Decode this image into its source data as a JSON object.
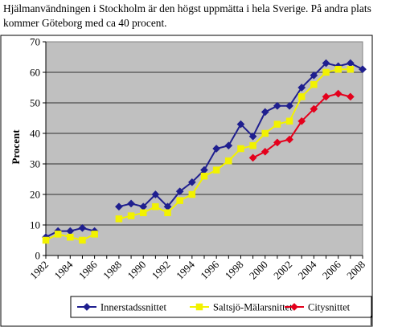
{
  "caption": "Hjälmanvändningen i Stockholm är den högst uppmätta i hela Sverige. På andra plats kommer Göteborg med ca 40 procent.",
  "chart_data": {
    "type": "line",
    "title": "",
    "xlabel": "",
    "ylabel": "Procent",
    "xlim": [
      1982,
      2008
    ],
    "ylim": [
      0,
      70
    ],
    "y_ticks": [
      0,
      10,
      20,
      30,
      40,
      50,
      60,
      70
    ],
    "x_ticks": [
      "1982",
      "1984",
      "1986",
      "1988",
      "1990",
      "1992",
      "1994",
      "1996",
      "1998",
      "2000",
      "2002",
      "2004",
      "2006",
      "2008"
    ],
    "grid": "horizontal",
    "legend_position": "bottom",
    "series": [
      {
        "name": "Innerstadssnittet",
        "color": "#1f1f8f",
        "marker": "diamond",
        "points": [
          [
            1982,
            6
          ],
          [
            1983,
            8
          ],
          [
            1984,
            8
          ],
          [
            1985,
            9
          ],
          [
            1986,
            8
          ],
          [
            null,
            null
          ],
          [
            1988,
            16
          ],
          [
            1989,
            17
          ],
          [
            1990,
            16
          ],
          [
            1991,
            20
          ],
          [
            1992,
            16
          ],
          [
            1993,
            21
          ],
          [
            1994,
            24
          ],
          [
            1995,
            28
          ],
          [
            1996,
            35
          ],
          [
            1997,
            36
          ],
          [
            1998,
            43
          ],
          [
            1999,
            39
          ],
          [
            2000,
            47
          ],
          [
            2001,
            49
          ],
          [
            2002,
            49
          ],
          [
            2003,
            55
          ],
          [
            2004,
            59
          ],
          [
            2005,
            63
          ],
          [
            2006,
            62
          ],
          [
            2007,
            63
          ],
          [
            2008,
            61
          ]
        ]
      },
      {
        "name": "Saltsjö-Mälarsnittet",
        "color": "#f2f200",
        "marker": "square",
        "points": [
          [
            1982,
            5
          ],
          [
            1983,
            7
          ],
          [
            1984,
            6
          ],
          [
            1985,
            5
          ],
          [
            1986,
            7
          ],
          [
            null,
            null
          ],
          [
            1988,
            12
          ],
          [
            1989,
            13
          ],
          [
            1990,
            14
          ],
          [
            1991,
            16
          ],
          [
            1992,
            14
          ],
          [
            1993,
            18
          ],
          [
            1994,
            20
          ],
          [
            1995,
            26
          ],
          [
            1996,
            28
          ],
          [
            1997,
            31
          ],
          [
            1998,
            35
          ],
          [
            1999,
            36
          ],
          [
            2000,
            40
          ],
          [
            2001,
            43
          ],
          [
            2002,
            44
          ],
          [
            2003,
            52
          ],
          [
            2004,
            56
          ],
          [
            2005,
            60
          ],
          [
            2006,
            61
          ],
          [
            2007,
            61
          ]
        ]
      },
      {
        "name": "Citysnittet",
        "color": "#e4001c",
        "marker": "diamond",
        "points": [
          [
            1999,
            32
          ],
          [
            2000,
            34
          ],
          [
            2001,
            37
          ],
          [
            2002,
            38
          ],
          [
            2003,
            44
          ],
          [
            2004,
            48
          ],
          [
            2005,
            52
          ],
          [
            2006,
            53
          ],
          [
            2007,
            52
          ]
        ]
      }
    ]
  }
}
